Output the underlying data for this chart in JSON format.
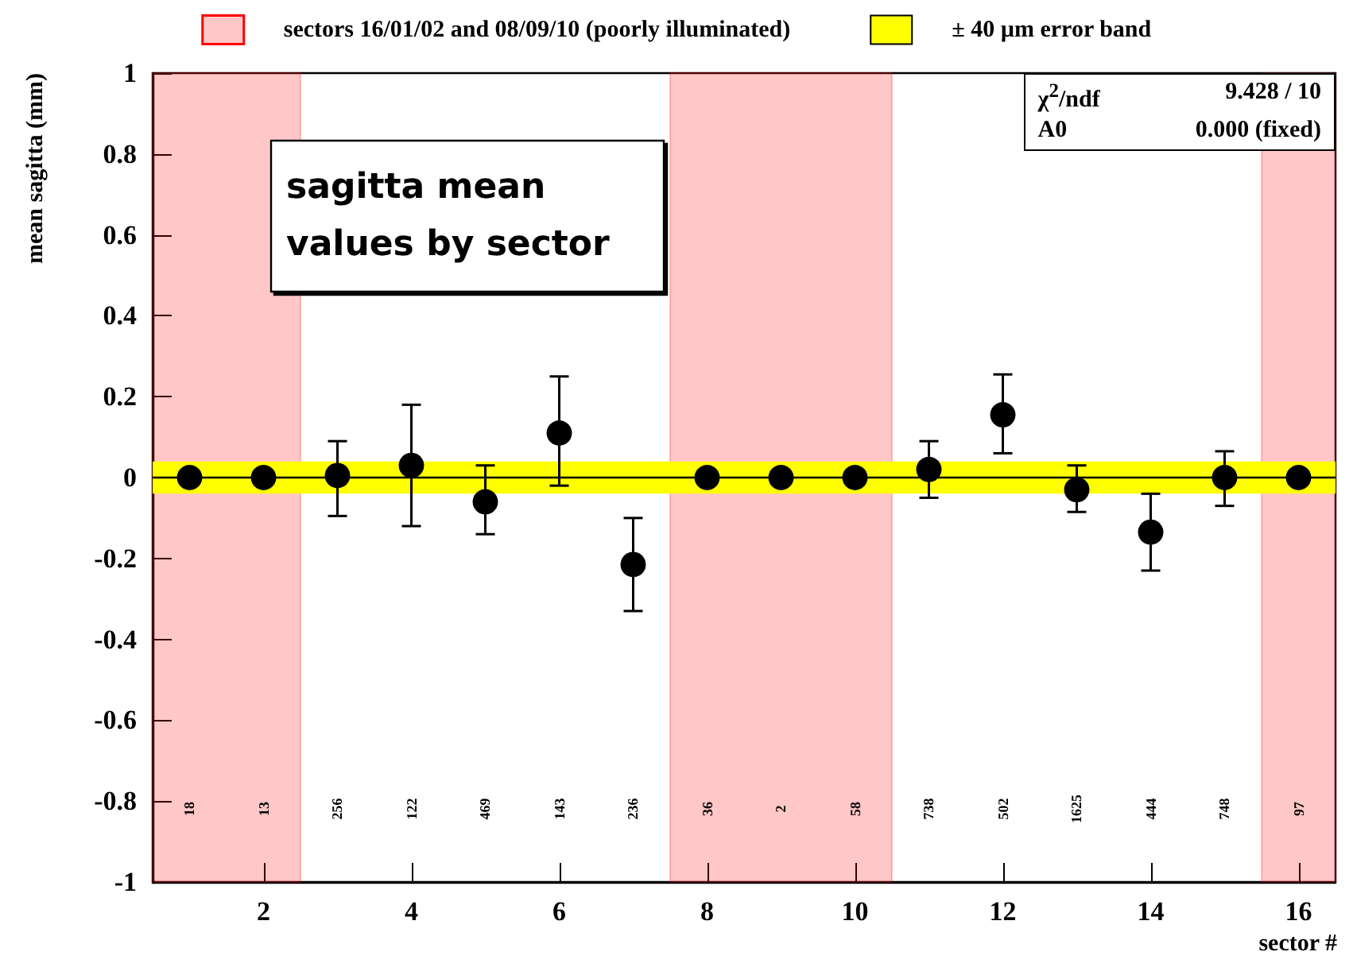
{
  "chart_data": {
    "type": "scatter",
    "title": "sagitta mean values by sector",
    "xlabel": "sector #",
    "ylabel": "mean sagitta (mm)",
    "x": [
      1,
      2,
      3,
      4,
      5,
      6,
      7,
      8,
      9,
      10,
      11,
      12,
      13,
      14,
      15,
      16
    ],
    "series": [
      {
        "color": "#000000",
        "marker": "circle",
        "values": [
          0,
          0,
          0.005,
          0.03,
          -0.06,
          0.11,
          -0.215,
          0,
          0,
          0,
          0.02,
          0.155,
          -0.03,
          -0.135,
          0,
          0
        ],
        "errors": [
          null,
          null,
          [
            -0.095,
            0.09
          ],
          [
            -0.12,
            0.18
          ],
          [
            -0.14,
            0.03
          ],
          [
            -0.02,
            0.25
          ],
          [
            -0.33,
            -0.1
          ],
          null,
          null,
          null,
          [
            -0.05,
            0.09
          ],
          [
            0.06,
            0.255
          ],
          [
            -0.085,
            0.03
          ],
          [
            -0.23,
            -0.04
          ],
          [
            -0.07,
            0.065
          ],
          null
        ]
      },
      {
        "type": "line",
        "color": "#000000",
        "marker": "none",
        "x": [
          0.5,
          16.5
        ],
        "values": [
          0,
          0
        ]
      }
    ],
    "xlim": [
      0.5,
      16.5
    ],
    "ylim": [
      -1,
      1
    ],
    "xticks": [
      2,
      4,
      6,
      8,
      10,
      12,
      14,
      16
    ],
    "yticks": [
      -1,
      -0.8,
      -0.6,
      -0.4,
      -0.2,
      0,
      0.2,
      0.4,
      0.6,
      0.8,
      1
    ],
    "legend": "top",
    "bands": [
      {
        "axis": "x",
        "from": 0.5,
        "to": 2.5,
        "label": "sectors 16/01/02 and 08/09/10 (poorly illuminated)",
        "color": "#ff0000"
      },
      {
        "axis": "x",
        "from": 7.5,
        "to": 10.5,
        "color": "#ff0000"
      },
      {
        "axis": "x",
        "from": 15.5,
        "to": 16.5,
        "color": "#ff0000"
      },
      {
        "axis": "y",
        "from": -0.04,
        "to": 0.04,
        "label": "± 40 µm error band",
        "color": "#ffff00"
      }
    ],
    "annotations": [
      "χ$^{2}$/ndf",
      "9.428  /  10",
      "A0",
      "0.000 (fixed)",
      "18",
      "13",
      "256",
      "122",
      "469",
      "143",
      "236",
      "36",
      "2",
      "58",
      "738",
      "502",
      "1625",
      "444",
      "748",
      "97"
    ]
  }
}
